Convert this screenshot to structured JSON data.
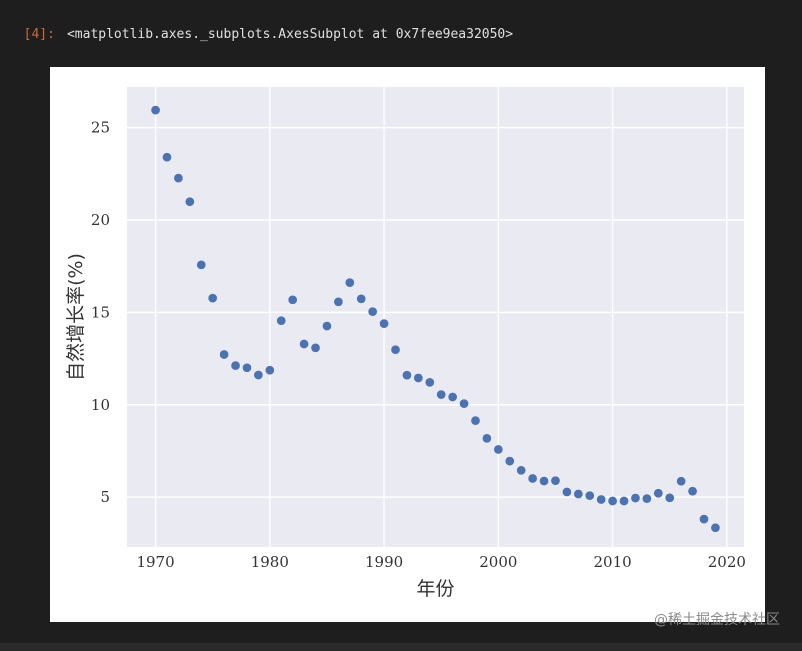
{
  "cell": {
    "prompt": "[4]:",
    "output_repr": "<matplotlib.axes._subplots.AxesSubplot at 0x7fee9ea32050>"
  },
  "watermark": "@稀土掘金技术社区",
  "colors": {
    "axes_bg": "#eaeaf2",
    "grid": "#ffffff",
    "point": "#4c72b0",
    "tick_text": "#333333"
  },
  "chart_data": {
    "type": "scatter",
    "title": "",
    "xlabel": "年份",
    "ylabel": "自然增长率(%)",
    "xlim": [
      1967.5,
      2021.5
    ],
    "ylim": [
      2.3,
      27.2
    ],
    "xticks": [
      1970,
      1980,
      1990,
      2000,
      2010,
      2020
    ],
    "yticks": [
      5,
      10,
      15,
      20,
      25
    ],
    "grid": true,
    "x": [
      1970,
      1971,
      1972,
      1973,
      1974,
      1975,
      1976,
      1977,
      1978,
      1979,
      1980,
      1981,
      1982,
      1983,
      1984,
      1985,
      1986,
      1987,
      1988,
      1989,
      1990,
      1991,
      1992,
      1993,
      1994,
      1995,
      1996,
      1997,
      1998,
      1999,
      2000,
      2001,
      2002,
      2003,
      2004,
      2005,
      2006,
      2007,
      2008,
      2009,
      2010,
      2011,
      2012,
      2013,
      2014,
      2015,
      2016,
      2017,
      2018,
      2019
    ],
    "y": [
      25.95,
      23.4,
      22.27,
      20.99,
      17.57,
      15.77,
      12.72,
      12.12,
      12.0,
      11.61,
      11.87,
      14.55,
      15.68,
      13.29,
      13.08,
      14.26,
      15.57,
      16.61,
      15.73,
      15.04,
      14.39,
      12.98,
      11.6,
      11.45,
      11.21,
      10.55,
      10.42,
      10.06,
      9.14,
      8.18,
      7.58,
      6.95,
      6.45,
      6.01,
      5.87,
      5.89,
      5.28,
      5.17,
      5.08,
      4.87,
      4.79,
      4.79,
      4.95,
      4.92,
      5.21,
      4.96,
      5.86,
      5.32,
      3.81,
      3.34
    ]
  }
}
